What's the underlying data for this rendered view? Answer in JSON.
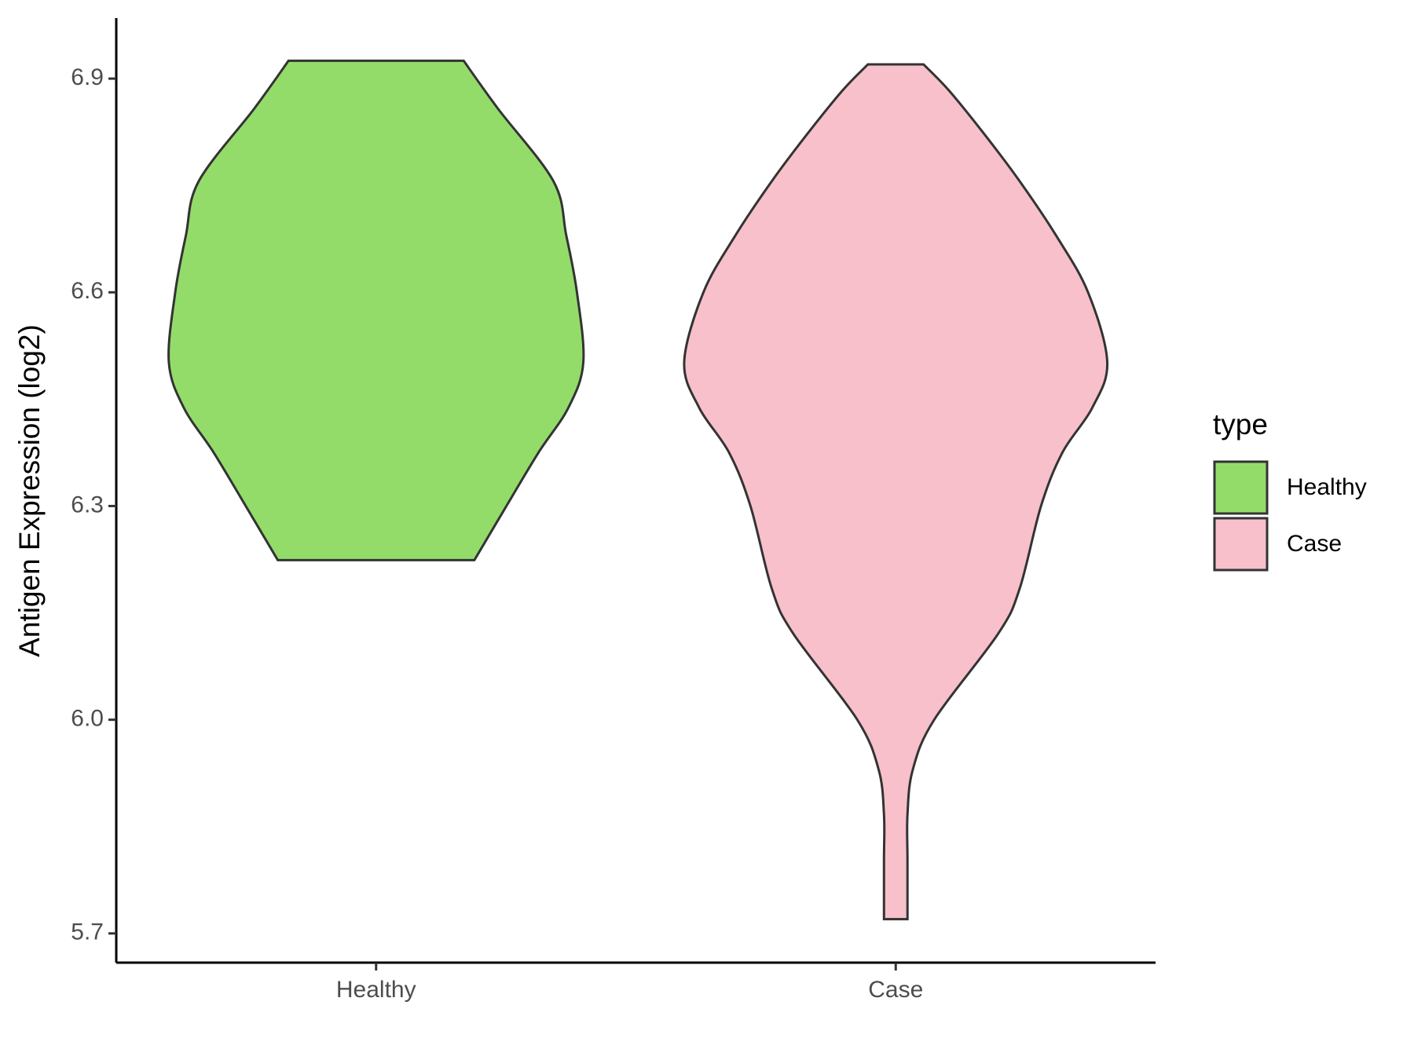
{
  "chart_data": {
    "type": "violin",
    "y_label": "Antigen Expression (log2)",
    "categories": [
      "Healthy",
      "Case"
    ],
    "series": [
      {
        "name": "Healthy",
        "color": "#93dc6a",
        "y": [
          6.925,
          6.858,
          6.756,
          6.68,
          6.6,
          6.502,
          6.438,
          6.375,
          6.3,
          6.224
        ],
        "density": [
          0.41,
          0.57,
          0.83,
          0.89,
          0.94,
          0.97,
          0.9,
          0.76,
          0.61,
          0.46
        ]
      },
      {
        "name": "Case",
        "color": "#f7c0cb",
        "y": [
          6.92,
          6.883,
          6.82,
          6.756,
          6.68,
          6.6,
          6.502,
          6.438,
          6.375,
          6.3,
          6.184,
          6.121,
          6.0,
          5.93,
          5.867,
          5.803,
          5.72
        ],
        "density": [
          0.13,
          0.25,
          0.42,
          0.58,
          0.75,
          0.9,
          0.99,
          0.92,
          0.78,
          0.68,
          0.58,
          0.48,
          0.18,
          0.08,
          0.055,
          0.055,
          0.055
        ]
      }
    ],
    "ylim": [
      5.659,
      6.985
    ],
    "yticks": [
      5.7,
      6.0,
      6.3,
      6.6,
      6.9
    ],
    "legend_title": "type",
    "legend": "right"
  }
}
